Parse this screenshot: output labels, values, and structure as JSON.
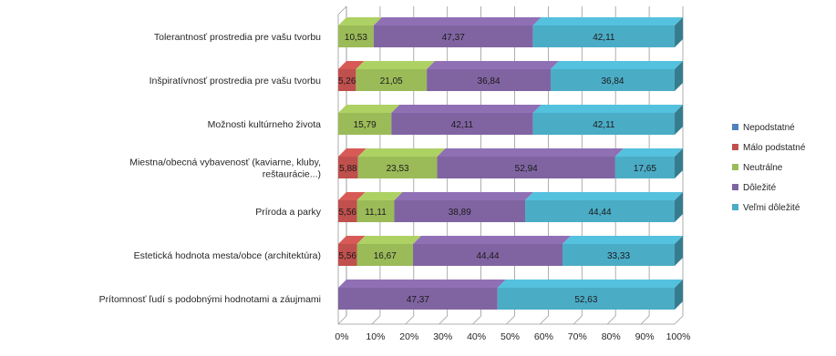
{
  "chart_data": {
    "type": "bar",
    "orientation": "horizontal",
    "stacked": "percent",
    "categories": [
      "Tolerantnosť prostredia pre vašu tvorbu",
      "Inšpiratívnosť prostredia pre vašu tvorbu",
      "Možnosti kultúrneho života",
      "Miestna/obecná vybavenosť (kaviarne, kluby, reštaurácie...)",
      "Príroda a parky",
      "Estetická hodnota mesta/obce (architektúra)",
      "Prítomnosť ľudí s podobnými hodnotami a záujmami"
    ],
    "series": [
      {
        "name": "Nepodstatné",
        "color": "#4f81bd",
        "values": [
          0,
          0,
          0,
          0,
          0,
          0,
          0
        ],
        "labels": [
          "",
          "",
          "",
          "",
          "",
          "",
          ""
        ]
      },
      {
        "name": "Málo podstatné",
        "color": "#c0504d",
        "values": [
          0,
          5.26,
          0,
          5.88,
          5.56,
          5.56,
          0
        ],
        "labels": [
          "",
          "5,26",
          "",
          "5,88",
          "5,56",
          "5,56",
          ""
        ]
      },
      {
        "name": "Neutrálne",
        "color": "#9bbb59",
        "values": [
          10.53,
          21.05,
          15.79,
          23.53,
          11.11,
          16.67,
          0
        ],
        "labels": [
          "10,53",
          "21,05",
          "15,79",
          "23,53",
          "11,11",
          "16,67",
          ""
        ]
      },
      {
        "name": "Dôležité",
        "color": "#8064a2",
        "values": [
          47.37,
          36.84,
          42.11,
          52.94,
          38.89,
          44.44,
          47.37
        ],
        "labels": [
          "47,37",
          "36,84",
          "42,11",
          "52,94",
          "38,89",
          "44,44",
          "47,37"
        ]
      },
      {
        "name": "Veľmi dôležité",
        "color": "#4bacc6",
        "values": [
          42.11,
          36.84,
          42.11,
          17.65,
          44.44,
          33.33,
          52.63
        ],
        "labels": [
          "42,11",
          "36,84",
          "42,11",
          "17,65",
          "44,44",
          "33,33",
          "52,63"
        ]
      }
    ],
    "x_ticks": [
      "0%",
      "10%",
      "20%",
      "30%",
      "40%",
      "50%",
      "60%",
      "70%",
      "80%",
      "90%",
      "100%"
    ],
    "xlim": [
      0,
      100
    ],
    "grid": true,
    "legend_position": "right",
    "title": "",
    "xlabel": "",
    "ylabel": ""
  }
}
